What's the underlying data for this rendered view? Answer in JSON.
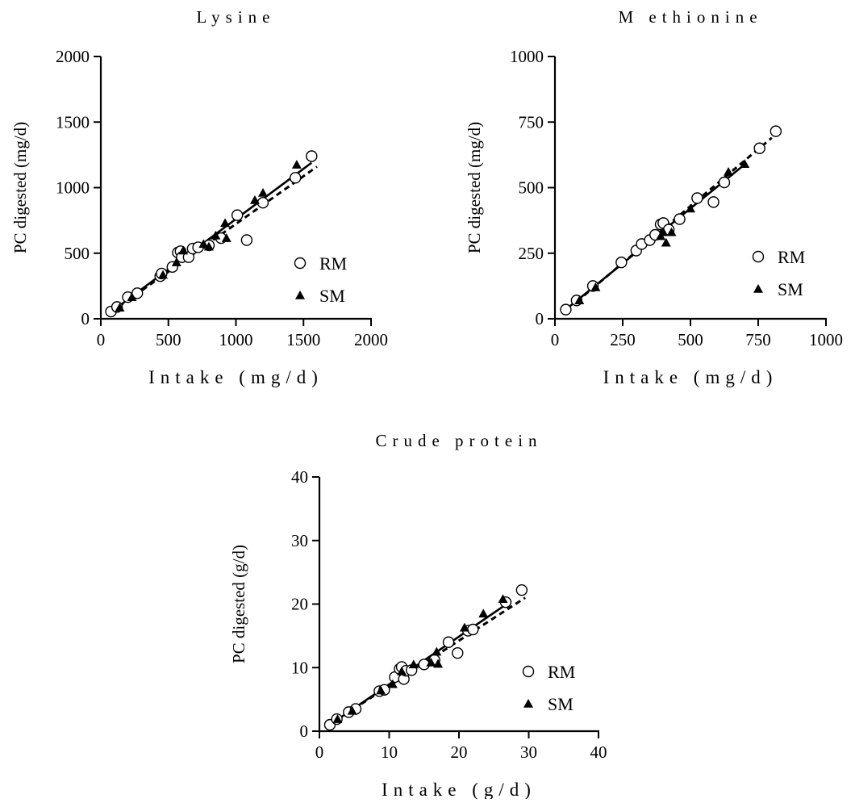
{
  "chart_data": [
    {
      "type": "scatter",
      "title": "Lysine",
      "xlabel": "Intake (mg/d)",
      "ylabel": "PC digested (mg/d)",
      "xlim": [
        0,
        2000
      ],
      "ylim": [
        0,
        2000
      ],
      "xticks": [
        "0",
        "500",
        "1000",
        "1500",
        "2000"
      ],
      "yticks": [
        "0",
        "500",
        "1000",
        "1500",
        "2000"
      ],
      "legend": "bottom-right",
      "series": [
        {
          "name": "RM",
          "marker": "open-circle",
          "points": [
            [
              75,
              55
            ],
            [
              120,
              90
            ],
            [
              200,
              165
            ],
            [
              270,
              195
            ],
            [
              440,
              325
            ],
            [
              450,
              345
            ],
            [
              530,
              395
            ],
            [
              570,
              505
            ],
            [
              590,
              515
            ],
            [
              600,
              470
            ],
            [
              650,
              470
            ],
            [
              680,
              535
            ],
            [
              720,
              545
            ],
            [
              800,
              560
            ],
            [
              890,
              615
            ],
            [
              1010,
              790
            ],
            [
              1080,
              600
            ],
            [
              1200,
              885
            ],
            [
              1440,
              1075
            ],
            [
              1560,
              1240
            ]
          ]
        },
        {
          "name": "SM",
          "marker": "filled-triangle",
          "points": [
            [
              140,
              85
            ],
            [
              230,
              165
            ],
            [
              460,
              335
            ],
            [
              560,
              430
            ],
            [
              610,
              520
            ],
            [
              760,
              570
            ],
            [
              800,
              550
            ],
            [
              850,
              635
            ],
            [
              920,
              730
            ],
            [
              930,
              615
            ],
            [
              1140,
              905
            ],
            [
              1200,
              960
            ],
            [
              1450,
              1175
            ]
          ]
        }
      ],
      "fit_lines": [
        {
          "series": "RM",
          "style": "solid",
          "x": [
            60,
            1560
          ],
          "y": [
            40,
            1190
          ]
        },
        {
          "series": "SM",
          "style": "dashed",
          "x": [
            130,
            1600
          ],
          "y": [
            90,
            1160
          ]
        }
      ]
    },
    {
      "type": "scatter",
      "title": "M ethionine",
      "xlabel": "Intake (mg/d)",
      "ylabel": "PC digested (mg/d)",
      "xlim": [
        0,
        1000
      ],
      "ylim": [
        0,
        1000
      ],
      "xticks": [
        "0",
        "250",
        "500",
        "750",
        "1000"
      ],
      "yticks": [
        "0",
        "250",
        "500",
        "750",
        "1000"
      ],
      "legend": "bottom-right",
      "series": [
        {
          "name": "RM",
          "marker": "open-circle",
          "points": [
            [
              40,
              35
            ],
            [
              80,
              70
            ],
            [
              140,
              125
            ],
            [
              245,
              215
            ],
            [
              300,
              260
            ],
            [
              320,
              285
            ],
            [
              350,
              300
            ],
            [
              370,
              320
            ],
            [
              390,
              360
            ],
            [
              400,
              365
            ],
            [
              420,
              340
            ],
            [
              460,
              380
            ],
            [
              525,
              460
            ],
            [
              585,
              445
            ],
            [
              625,
              520
            ],
            [
              755,
              650
            ],
            [
              815,
              715
            ]
          ]
        },
        {
          "name": "SM",
          "marker": "filled-triangle",
          "points": [
            [
              90,
              70
            ],
            [
              150,
              120
            ],
            [
              390,
              315
            ],
            [
              400,
              330
            ],
            [
              410,
              290
            ],
            [
              430,
              330
            ],
            [
              500,
              420
            ],
            [
              640,
              560
            ],
            [
              700,
              590
            ]
          ]
        }
      ],
      "fit_lines": [
        {
          "series": "RM",
          "style": "solid",
          "x": [
            40,
            690
          ],
          "y": [
            35,
            580
          ]
        },
        {
          "series": "SM",
          "style": "dashed",
          "x": [
            80,
            800
          ],
          "y": [
            65,
            690
          ]
        }
      ]
    },
    {
      "type": "scatter",
      "title": "Crude protein",
      "xlabel": "Intake (g/d)",
      "ylabel": "PC digested (g/d)",
      "xlim": [
        0,
        40
      ],
      "ylim": [
        0,
        40
      ],
      "xticks": [
        "0",
        "10",
        "20",
        "30",
        "40"
      ],
      "yticks": [
        "0",
        "10",
        "20",
        "30",
        "40"
      ],
      "legend": "bottom-right",
      "series": [
        {
          "name": "RM",
          "marker": "open-circle",
          "points": [
            [
              1.5,
              1.0
            ],
            [
              2.5,
              1.9
            ],
            [
              4.2,
              3.0
            ],
            [
              5.2,
              3.5
            ],
            [
              8.6,
              6.3
            ],
            [
              9.3,
              6.5
            ],
            [
              10.8,
              8.5
            ],
            [
              11.5,
              9.8
            ],
            [
              11.8,
              10.1
            ],
            [
              12.1,
              8.2
            ],
            [
              12.4,
              9.5
            ],
            [
              13.2,
              9.6
            ],
            [
              15.0,
              10.5
            ],
            [
              16.5,
              11.2
            ],
            [
              18.5,
              14.0
            ],
            [
              19.8,
              12.3
            ],
            [
              21.3,
              15.8
            ],
            [
              22.0,
              16.0
            ],
            [
              26.7,
              20.3
            ],
            [
              29.0,
              22.2
            ]
          ]
        },
        {
          "name": "SM",
          "marker": "filled-triangle",
          "points": [
            [
              2.6,
              1.9
            ],
            [
              4.7,
              3.2
            ],
            [
              8.8,
              6.4
            ],
            [
              10.5,
              7.4
            ],
            [
              11.8,
              9.4
            ],
            [
              13.5,
              10.5
            ],
            [
              16.0,
              10.8
            ],
            [
              16.8,
              12.5
            ],
            [
              17.0,
              10.6
            ],
            [
              20.8,
              16.3
            ],
            [
              23.5,
              18.5
            ],
            [
              26.3,
              20.8
            ]
          ]
        }
      ],
      "fit_lines": [
        {
          "series": "RM",
          "style": "solid",
          "x": [
            1.5,
            27.5
          ],
          "y": [
            1.0,
            20.5
          ]
        },
        {
          "series": "SM",
          "style": "dashed",
          "x": [
            2.5,
            29.5
          ],
          "y": [
            1.8,
            21.0
          ]
        }
      ]
    }
  ]
}
